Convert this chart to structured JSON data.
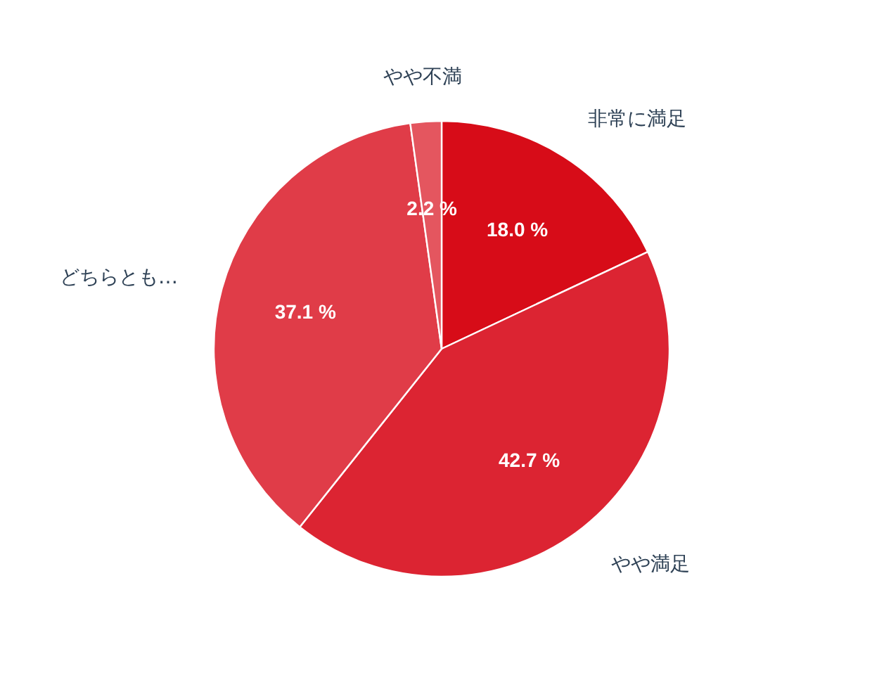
{
  "chart_data": {
    "type": "pie",
    "categories": [
      "非常に満足",
      "やや満足",
      "どちらとも…",
      "やや不満"
    ],
    "values": [
      18.0,
      42.7,
      37.1,
      2.2
    ],
    "colors": [
      "#d70c18",
      "#dc2432",
      "#e03c48",
      "#e4565f"
    ],
    "value_labels": [
      "18.0 %",
      "42.7 %",
      "37.1 %",
      "2.2 %"
    ]
  }
}
